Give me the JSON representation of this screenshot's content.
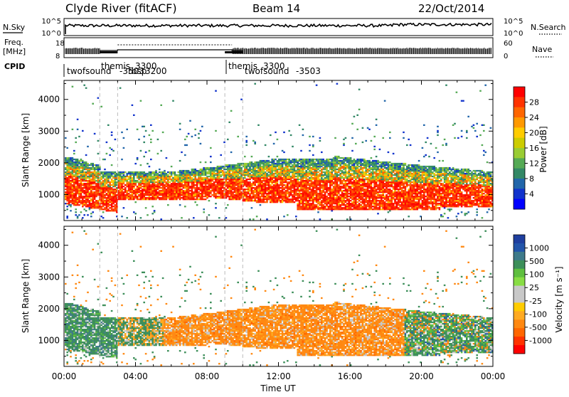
{
  "header": {
    "station": "Clyde River (fitACF)",
    "beam": "Beam 14",
    "date": "22/Oct/2014"
  },
  "top_panels": {
    "nsky_label": "N.Sky",
    "nsky_ticks": [
      "10^5",
      "10^0"
    ],
    "nsearch_label": "N.Search",
    "nsearch_ticks": [
      "10^5",
      "10^0"
    ],
    "freq_label_1": "Freq.",
    "freq_label_2": "[MHz]",
    "freq_ticks": [
      "18",
      "8"
    ],
    "nave_label": "Nave",
    "nave_ticks": [
      "60",
      "0"
    ],
    "cpid_label": "CPID",
    "cpid_segments": [
      {
        "name": "twofsound",
        "id": "-3503",
        "start_h": 0
      },
      {
        "name": "themis",
        "id": "3300",
        "start_h": 2.0
      },
      {
        "name": "rbsp",
        "id": "3200",
        "start_h": 3.0
      },
      {
        "name": "themis",
        "id": "3300",
        "start_h": 9.0
      },
      {
        "name": "twofsound",
        "id": "-3503",
        "start_h": 10.0
      }
    ]
  },
  "chart_data": [
    {
      "type": "heatmap",
      "name": "power",
      "xlabel": "",
      "ylabel": "Slant Range [km]",
      "xlim_hours": [
        0,
        24
      ],
      "ylim_km": [
        180,
        4600
      ],
      "yticks": [
        1000,
        2000,
        3000,
        4000
      ],
      "colorbar_label": "Power [dB]",
      "colorbar_ticks": [
        "28",
        "24",
        "20",
        "16",
        "12",
        "8",
        "4"
      ],
      "colorbar_colors": [
        "#ff0000",
        "#ff3300",
        "#ff6600",
        "#ff9900",
        "#ffcc00",
        "#cccc00",
        "#99cc33",
        "#55aa55",
        "#338866",
        "#2266aa",
        "#1133cc",
        "#0000ff"
      ]
    },
    {
      "type": "heatmap",
      "name": "velocity",
      "xlabel": "Time UT",
      "ylabel": "Slant Range [km]",
      "xlim_hours": [
        0,
        24
      ],
      "ylim_km": [
        180,
        4600
      ],
      "yticks": [
        1000,
        2000,
        3000,
        4000
      ],
      "xticks": [
        "00:00",
        "04:00",
        "08:00",
        "12:00",
        "16:00",
        "20:00",
        "00:00"
      ],
      "colorbar_label": "Velocity [m s⁻¹]",
      "colorbar_ticks": [
        "1000",
        "500",
        "100",
        "25",
        "-25",
        "-100",
        "-500",
        "-1000"
      ],
      "colorbar_colors": [
        "#1f3f9f",
        "#2255aa",
        "#3e7a8a",
        "#3d8f5a",
        "#5fbf3f",
        "#88dd44",
        "#c8c8c8",
        "#c8c8c8",
        "#ffcc00",
        "#ffaa22",
        "#ff8811",
        "#ff6600",
        "#ff3300",
        "#ff0000"
      ]
    }
  ]
}
